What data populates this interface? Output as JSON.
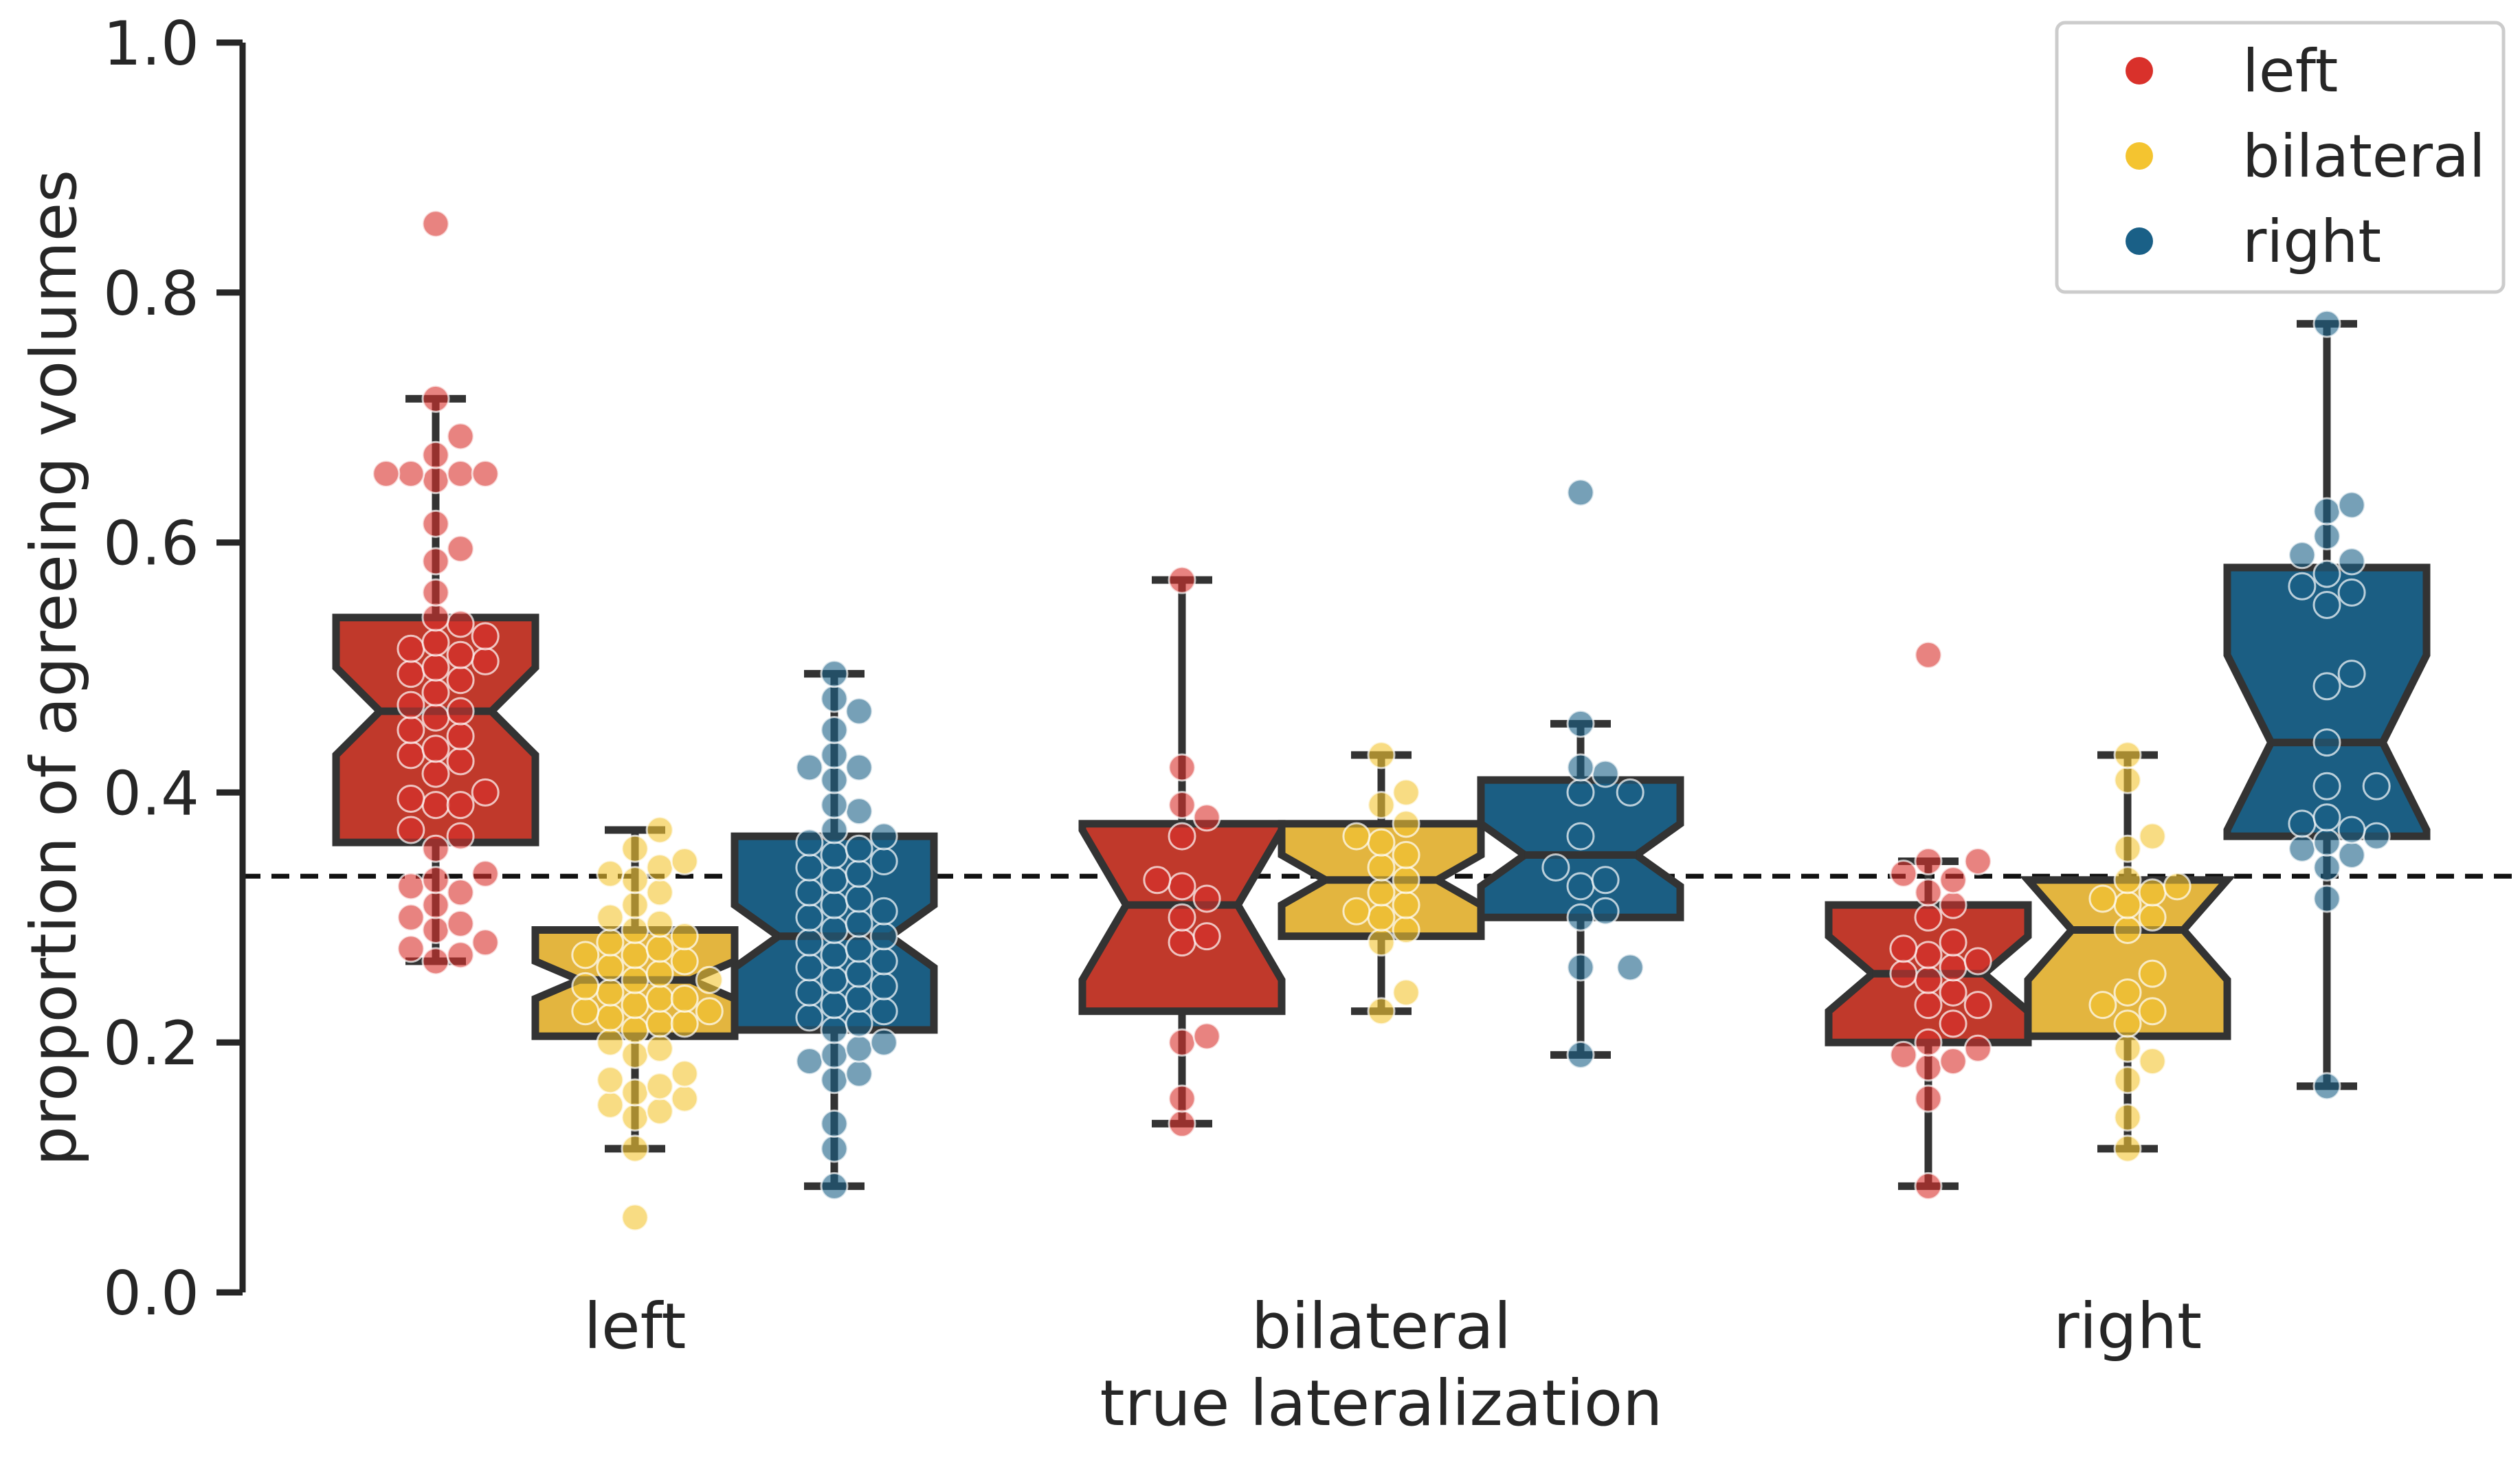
{
  "chart_data": {
    "type": "box",
    "title": "",
    "xlabel": "true lateralization",
    "ylabel": "proportion of agreeing volumes",
    "categories": [
      "left",
      "bilateral",
      "right"
    ],
    "ylim": [
      0.0,
      1.0
    ],
    "yticks": [
      "0.0",
      "0.2",
      "0.4",
      "0.6",
      "0.8",
      "1.0"
    ],
    "reference_line": {
      "y": 0.333,
      "style": "dashed"
    },
    "legend": {
      "position": "top-right",
      "entries": [
        "left",
        "bilateral",
        "right"
      ]
    },
    "colors": {
      "left": "#c0392b",
      "bilateral": "#e3b53f",
      "right": "#1b5e83",
      "left_point": "#d9312b",
      "bilateral_point": "#f4c430",
      "right_point": "#1a6087"
    },
    "series": [
      {
        "name": "left",
        "boxes": [
          {
            "category": "left",
            "whisker_low": 0.265,
            "q1": 0.36,
            "median": 0.465,
            "q3": 0.54,
            "whisker_high": 0.715,
            "notch_low": 0.43,
            "notch_high": 0.5,
            "points": [
              0.855,
              0.715,
              0.685,
              0.67,
              0.655,
              0.655,
              0.655,
              0.655,
              0.65,
              0.615,
              0.595,
              0.585,
              0.56,
              0.54,
              0.535,
              0.525,
              0.52,
              0.515,
              0.51,
              0.505,
              0.5,
              0.495,
              0.49,
              0.48,
              0.47,
              0.465,
              0.46,
              0.45,
              0.445,
              0.435,
              0.43,
              0.425,
              0.415,
              0.4,
              0.395,
              0.39,
              0.39,
              0.37,
              0.365,
              0.355,
              0.335,
              0.33,
              0.325,
              0.32,
              0.31,
              0.3,
              0.295,
              0.29,
              0.28,
              0.275,
              0.27,
              0.265
            ]
          },
          {
            "category": "bilateral",
            "whisker_low": 0.135,
            "q1": 0.225,
            "median": 0.31,
            "q3": 0.375,
            "whisker_high": 0.57,
            "notch_low": 0.25,
            "notch_high": 0.37,
            "points": [
              0.57,
              0.42,
              0.39,
              0.38,
              0.365,
              0.33,
              0.325,
              0.315,
              0.3,
              0.285,
              0.28,
              0.205,
              0.2,
              0.155,
              0.135
            ]
          },
          {
            "category": "right",
            "whisker_low": 0.085,
            "q1": 0.2,
            "median": 0.255,
            "q3": 0.31,
            "whisker_high": 0.345,
            "notch_low": 0.225,
            "notch_high": 0.285,
            "points": [
              0.51,
              0.345,
              0.345,
              0.335,
              0.33,
              0.32,
              0.31,
              0.3,
              0.28,
              0.275,
              0.27,
              0.265,
              0.26,
              0.255,
              0.25,
              0.24,
              0.23,
              0.23,
              0.215,
              0.2,
              0.195,
              0.19,
              0.185,
              0.18,
              0.155,
              0.085
            ]
          }
        ]
      },
      {
        "name": "bilateral",
        "boxes": [
          {
            "category": "left",
            "whisker_low": 0.115,
            "q1": 0.205,
            "median": 0.25,
            "q3": 0.29,
            "whisker_high": 0.37,
            "notch_low": 0.235,
            "notch_high": 0.265,
            "points": [
              0.37,
              0.355,
              0.345,
              0.34,
              0.335,
              0.33,
              0.32,
              0.31,
              0.3,
              0.295,
              0.29,
              0.285,
              0.28,
              0.275,
              0.27,
              0.27,
              0.265,
              0.26,
              0.255,
              0.25,
              0.25,
              0.245,
              0.24,
              0.235,
              0.235,
              0.23,
              0.225,
              0.225,
              0.22,
              0.215,
              0.215,
              0.21,
              0.2,
              0.195,
              0.19,
              0.175,
              0.17,
              0.165,
              0.16,
              0.155,
              0.15,
              0.145,
              0.14,
              0.115,
              0.06
            ]
          },
          {
            "category": "bilateral",
            "whisker_low": 0.225,
            "q1": 0.285,
            "median": 0.33,
            "q3": 0.375,
            "whisker_high": 0.43,
            "notch_low": 0.31,
            "notch_high": 0.35,
            "points": [
              0.43,
              0.4,
              0.39,
              0.375,
              0.365,
              0.36,
              0.35,
              0.34,
              0.33,
              0.32,
              0.31,
              0.305,
              0.3,
              0.29,
              0.28,
              0.24,
              0.225
            ]
          },
          {
            "category": "right",
            "whisker_low": 0.115,
            "q1": 0.205,
            "median": 0.29,
            "q3": 0.33,
            "whisker_high": 0.43,
            "notch_low": 0.25,
            "notch_high": 0.33,
            "points": [
              0.43,
              0.41,
              0.365,
              0.355,
              0.33,
              0.325,
              0.32,
              0.315,
              0.31,
              0.3,
              0.29,
              0.255,
              0.24,
              0.23,
              0.225,
              0.215,
              0.195,
              0.185,
              0.17,
              0.14,
              0.115
            ]
          }
        ]
      },
      {
        "name": "right",
        "boxes": [
          {
            "category": "left",
            "whisker_low": 0.085,
            "q1": 0.21,
            "median": 0.285,
            "q3": 0.365,
            "whisker_high": 0.495,
            "notch_low": 0.26,
            "notch_high": 0.31,
            "points": [
              0.495,
              0.475,
              0.465,
              0.45,
              0.43,
              0.42,
              0.42,
              0.41,
              0.39,
              0.385,
              0.37,
              0.365,
              0.36,
              0.355,
              0.35,
              0.345,
              0.34,
              0.335,
              0.33,
              0.32,
              0.315,
              0.31,
              0.305,
              0.3,
              0.295,
              0.29,
              0.285,
              0.28,
              0.275,
              0.27,
              0.265,
              0.26,
              0.255,
              0.25,
              0.245,
              0.24,
              0.235,
              0.23,
              0.225,
              0.22,
              0.215,
              0.21,
              0.2,
              0.195,
              0.19,
              0.185,
              0.175,
              0.17,
              0.135,
              0.115,
              0.085
            ]
          },
          {
            "category": "bilateral",
            "whisker_low": 0.19,
            "q1": 0.3,
            "median": 0.35,
            "q3": 0.41,
            "whisker_high": 0.455,
            "notch_low": 0.325,
            "notch_high": 0.375,
            "points": [
              0.64,
              0.455,
              0.42,
              0.415,
              0.4,
              0.4,
              0.365,
              0.34,
              0.33,
              0.325,
              0.305,
              0.3,
              0.26,
              0.26,
              0.19
            ]
          },
          {
            "category": "right",
            "whisker_low": 0.165,
            "q1": 0.365,
            "median": 0.44,
            "q3": 0.58,
            "whisker_high": 0.775,
            "notch_low": 0.37,
            "notch_high": 0.51,
            "points": [
              0.775,
              0.63,
              0.625,
              0.605,
              0.59,
              0.585,
              0.575,
              0.565,
              0.56,
              0.55,
              0.495,
              0.485,
              0.44,
              0.405,
              0.405,
              0.38,
              0.375,
              0.37,
              0.365,
              0.36,
              0.355,
              0.35,
              0.34,
              0.315,
              0.165
            ]
          }
        ]
      }
    ]
  }
}
